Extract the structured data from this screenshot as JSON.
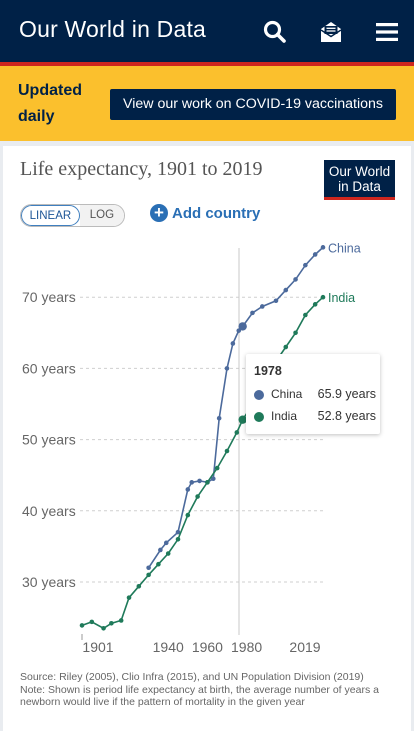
{
  "header": {
    "brand": "Our World in Data",
    "icons": [
      "search-icon",
      "newsletter-icon",
      "menu-icon"
    ]
  },
  "banner": {
    "label": "Updated daily",
    "line1": "Updated",
    "line2": "daily",
    "cta": "View our work on COVID-19 vaccinations"
  },
  "colors": {
    "navy": "#002147",
    "red": "#ce261e",
    "yellow": "#fbc02d",
    "china": "#4c6a9c",
    "india": "#1f7a5a"
  },
  "card": {
    "logo_line1": "Our World",
    "logo_line2": "in Data",
    "scale_linear": "LINEAR",
    "scale_log": "LOG",
    "add_country": "Add country"
  },
  "tooltip": {
    "year": "1978",
    "rows": [
      {
        "name": "China",
        "value": "65.9 years"
      },
      {
        "name": "India",
        "value": "52.8 years"
      }
    ]
  },
  "source": {
    "line": "Source: Riley (2005), Clio Infra (2015), and UN Population Division (2019)",
    "note": "Note: Shown is period life expectancy at birth, the average number of years a newborn would live if the pattern of mortality in the given year"
  },
  "chart_data": {
    "type": "line",
    "title": "Life expectancy, 1901 to 2019",
    "xlim": [
      1896,
      2019
    ],
    "ylim": [
      23,
      80
    ],
    "x_ticks": [
      "1901",
      "1940",
      "1960",
      "1980",
      "2019"
    ],
    "y_ticks": [
      "30 years",
      "40 years",
      "50 years",
      "60 years",
      "70 years"
    ],
    "y_tick_values": [
      30,
      40,
      50,
      60,
      70
    ],
    "x_tick_values": [
      1901,
      1940,
      1960,
      1980,
      2019
    ],
    "highlight_year": 1978,
    "series": [
      {
        "name": "China",
        "x": [
          1930,
          1936,
          1939,
          1945,
          1950,
          1952,
          1956,
          1960,
          1963,
          1966,
          1970,
          1973,
          1976,
          1978,
          1983,
          1988,
          1995,
          2000,
          2005,
          2010,
          2015,
          2019
        ],
        "y": [
          32.0,
          34.5,
          35.5,
          37.0,
          43.0,
          44.0,
          44.2,
          44.0,
          44.5,
          53.0,
          60.0,
          63.5,
          65.3,
          65.9,
          67.8,
          68.7,
          69.5,
          71.0,
          72.5,
          74.5,
          76.0,
          77.0
        ]
      },
      {
        "name": "India",
        "x": [
          1896,
          1901,
          1907,
          1911,
          1916,
          1920,
          1925,
          1930,
          1935,
          1940,
          1945,
          1950,
          1955,
          1960,
          1965,
          1970,
          1975,
          1978,
          1982,
          1986,
          1990,
          1995,
          2000,
          2005,
          2010,
          2015,
          2019
        ],
        "y": [
          23.9,
          24.4,
          23.5,
          24.2,
          24.6,
          27.8,
          29.4,
          31.0,
          32.5,
          34.0,
          36.0,
          39.4,
          42.0,
          44.0,
          46.0,
          48.4,
          51.0,
          52.8,
          54.5,
          56.3,
          58.0,
          61.0,
          63.0,
          65.0,
          67.5,
          69.0,
          70.0
        ]
      }
    ]
  }
}
